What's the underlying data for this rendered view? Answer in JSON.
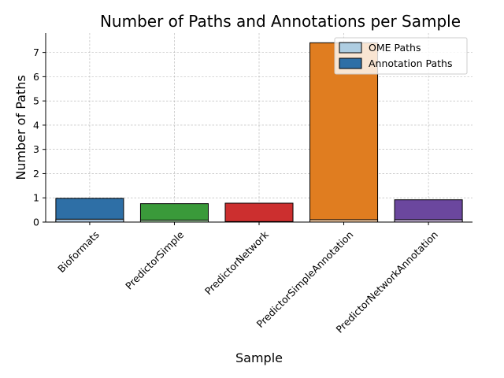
{
  "chart_data": {
    "type": "bar",
    "title": "Number of Paths and Annotations per Sample",
    "xlabel": "Sample",
    "ylabel": "Number of Paths",
    "categories": [
      "Bioformats",
      "PredictorSimple",
      "PredictorNetwork",
      "PredictorSimpleAnnotation",
      "PredictorNetworkAnnotation"
    ],
    "series": [
      {
        "name": "OME Paths",
        "values": [
          0.12,
          0.08,
          0.02,
          0.1,
          0.1
        ]
      },
      {
        "name": "Annotation Paths",
        "values": [
          0.98,
          0.76,
          0.78,
          7.4,
          0.92
        ]
      }
    ],
    "bar_colors": [
      "#2e6fa6",
      "#3a9a3a",
      "#cc2f2f",
      "#e07d20",
      "#6b479e"
    ],
    "ome_colors": [
      "#a9c0d6",
      "#a8d3a6",
      "#eba9a9",
      "#f3c89e",
      "#c4b3d8"
    ],
    "legend_colors": {
      "OME Paths": "#aecde1",
      "Annotation Paths": "#2e6fa6"
    },
    "ylim": [
      0,
      7.8
    ],
    "yticks": [
      0,
      1,
      2,
      3,
      4,
      5,
      6,
      7
    ],
    "grid": true,
    "legend_position": "top-right"
  }
}
